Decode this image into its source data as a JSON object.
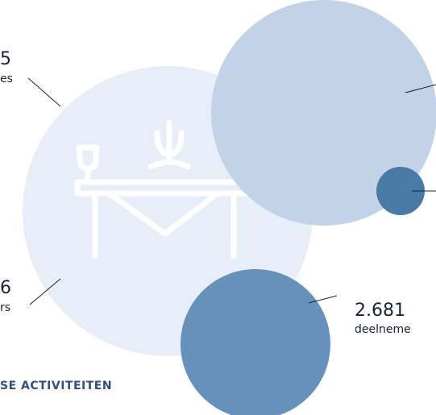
{
  "labels": [
    {
      "number": "5",
      "text": "es"
    },
    {
      "number": "6",
      "text": "rs"
    },
    {
      "number": "2.681",
      "text": "deelneme"
    }
  ],
  "heading": "SE ACTIVITEITEN"
}
